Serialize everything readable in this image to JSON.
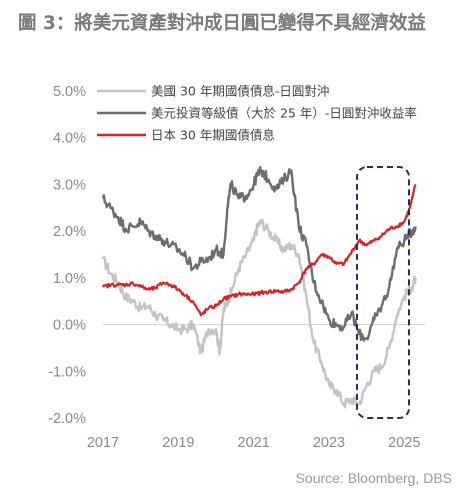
{
  "title": "圖 3：將美元資產對沖成日圓已變得不具經濟效益",
  "source": "Source: Bloomberg, DBS",
  "chart_data": {
    "type": "line",
    "title": "圖 3：將美元資產對沖成日圓已變得不具經濟效益",
    "xlabel": "",
    "ylabel": "",
    "xlim": [
      2017,
      2025.55
    ],
    "ylim": [
      -2.0,
      5.0
    ],
    "grid": false,
    "legend_position": "top-left",
    "x_tick_labels": [
      "2017",
      "2019",
      "2021",
      "2023",
      "2025"
    ],
    "y_tick_labels": [
      "5.0%",
      "4.0%",
      "3.0%",
      "2.0%",
      "1.0%",
      "0.0%",
      "-1.0%",
      "-2.0%"
    ],
    "annotation": "dashed navy box highlighting 2024–2025",
    "series": [
      {
        "name": "美國 30 年期國債債息-日圓對沖",
        "color": "#c4c4c4",
        "x": [
          2017.0,
          2017.2,
          2017.4,
          2017.6,
          2017.8,
          2018.0,
          2018.2,
          2018.4,
          2018.6,
          2018.8,
          2019.0,
          2019.2,
          2019.4,
          2019.6,
          2019.8,
          2020.0,
          2020.1,
          2020.2,
          2020.3,
          2020.4,
          2020.6,
          2020.8,
          2021.0,
          2021.1,
          2021.2,
          2021.4,
          2021.6,
          2021.8,
          2022.0,
          2022.2,
          2022.4,
          2022.6,
          2022.8,
          2023.0,
          2023.2,
          2023.4,
          2023.6,
          2023.8,
          2024.0,
          2024.2,
          2024.4,
          2024.6,
          2024.8,
          2025.0,
          2025.2,
          2025.3
        ],
        "values": [
          1.4,
          1.1,
          0.9,
          0.6,
          0.5,
          0.35,
          0.4,
          0.2,
          0.1,
          0.0,
          -0.1,
          -0.1,
          0.0,
          -0.6,
          -0.1,
          -0.1,
          -0.6,
          0.3,
          0.5,
          0.7,
          1.2,
          1.5,
          1.8,
          2.1,
          2.2,
          2.0,
          1.8,
          1.6,
          1.7,
          1.5,
          0.6,
          -0.4,
          -0.8,
          -1.3,
          -1.4,
          -1.7,
          -1.6,
          -1.7,
          -1.3,
          -1.0,
          -0.9,
          -0.5,
          0.2,
          0.6,
          0.8,
          1.0
        ]
      },
      {
        "name": "美元投資等級債（大於 25 年）-日圓對沖收益率",
        "color": "#6d6d6d",
        "x": [
          2017.0,
          2017.2,
          2017.4,
          2017.6,
          2017.8,
          2018.0,
          2018.2,
          2018.4,
          2018.6,
          2018.8,
          2019.0,
          2019.2,
          2019.4,
          2019.6,
          2019.8,
          2020.0,
          2020.2,
          2020.3,
          2020.4,
          2020.6,
          2020.8,
          2021.0,
          2021.1,
          2021.2,
          2021.4,
          2021.6,
          2021.8,
          2022.0,
          2022.2,
          2022.4,
          2022.6,
          2022.8,
          2023.0,
          2023.2,
          2023.4,
          2023.6,
          2023.8,
          2024.0,
          2024.2,
          2024.4,
          2024.6,
          2024.8,
          2025.0,
          2025.2,
          2025.3
        ],
        "values": [
          2.7,
          2.5,
          2.3,
          2.05,
          2.1,
          2.2,
          2.0,
          1.9,
          1.8,
          1.7,
          1.6,
          1.45,
          1.2,
          1.35,
          1.4,
          1.6,
          1.5,
          2.5,
          3.0,
          2.7,
          2.75,
          3.0,
          3.2,
          3.3,
          3.1,
          2.9,
          3.1,
          3.3,
          2.1,
          1.7,
          0.9,
          0.5,
          0.1,
          0.0,
          -0.05,
          0.25,
          -0.2,
          -0.3,
          0.1,
          0.4,
          0.8,
          1.6,
          1.8,
          2.0,
          2.1
        ]
      },
      {
        "name": "日本 30 年期國債債息",
        "color": "#e02020",
        "x": [
          2017.0,
          2017.2,
          2017.4,
          2017.6,
          2017.8,
          2018.0,
          2018.2,
          2018.4,
          2018.6,
          2018.8,
          2019.0,
          2019.2,
          2019.4,
          2019.6,
          2019.8,
          2020.0,
          2020.2,
          2020.4,
          2020.6,
          2020.8,
          2021.0,
          2021.2,
          2021.4,
          2021.6,
          2021.8,
          2022.0,
          2022.2,
          2022.4,
          2022.6,
          2022.8,
          2023.0,
          2023.2,
          2023.4,
          2023.6,
          2023.8,
          2024.0,
          2024.2,
          2024.4,
          2024.6,
          2024.8,
          2025.0,
          2025.15,
          2025.3
        ],
        "values": [
          0.8,
          0.85,
          0.85,
          0.85,
          0.88,
          0.82,
          0.75,
          0.78,
          0.9,
          0.85,
          0.75,
          0.62,
          0.48,
          0.2,
          0.35,
          0.4,
          0.55,
          0.6,
          0.65,
          0.65,
          0.65,
          0.68,
          0.7,
          0.72,
          0.7,
          0.75,
          0.9,
          1.2,
          1.3,
          1.5,
          1.45,
          1.3,
          1.3,
          1.55,
          1.8,
          1.7,
          1.8,
          1.9,
          2.05,
          2.1,
          2.2,
          2.5,
          3.0
        ]
      }
    ]
  }
}
